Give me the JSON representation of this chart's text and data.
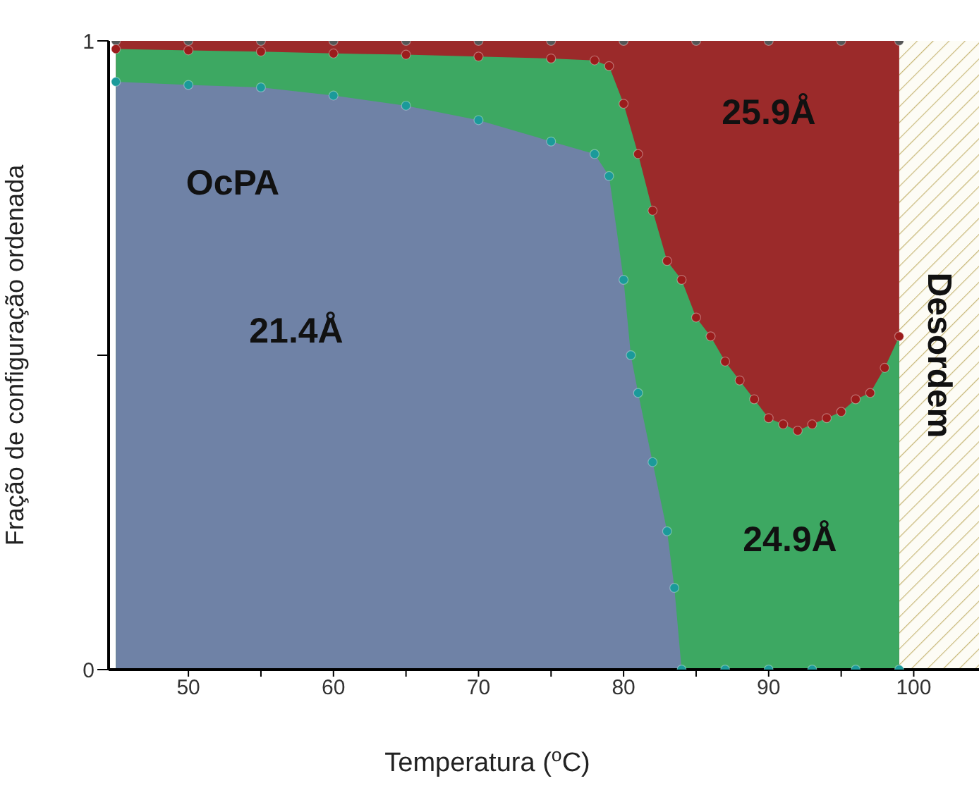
{
  "chart_data": {
    "type": "area",
    "xlabel": "Temperatura ($^{o}$C)",
    "ylabel": "Fração de configuração ordenada",
    "xlim": [
      44.5,
      104.5
    ],
    "xticks": [
      50,
      {
        "value": 55,
        "label": null
      },
      60,
      {
        "value": 65,
        "label": null
      },
      70,
      {
        "value": 75,
        "label": null
      },
      80,
      {
        "value": 85,
        "label": null
      },
      90,
      {
        "value": 95,
        "label": null
      },
      100
    ],
    "ylim": [
      0,
      1
    ],
    "yticks": [
      0,
      {
        "value": 0.5,
        "label": null
      },
      1
    ],
    "grid": false,
    "legend": false,
    "series": [
      {
        "color": "#9b2a2a",
        "x": [
          45,
          50,
          55,
          60,
          65,
          70,
          75,
          80,
          85,
          90,
          95,
          99
        ],
        "values": [
          1,
          1,
          1,
          1,
          1,
          1,
          1,
          1,
          1,
          1,
          1,
          1
        ]
      },
      {
        "color": "#3da862",
        "x": [
          45,
          50,
          55,
          60,
          65,
          70,
          75,
          78,
          79,
          80,
          81,
          82,
          83,
          84,
          85,
          86,
          87,
          88,
          89,
          90,
          91,
          92,
          93,
          94,
          95,
          96,
          97,
          98,
          99
        ],
        "values": [
          0.987,
          0.985,
          0.983,
          0.98,
          0.978,
          0.975,
          0.972,
          0.969,
          0.96,
          0.9,
          0.82,
          0.73,
          0.65,
          0.62,
          0.56,
          0.53,
          0.49,
          0.46,
          0.43,
          0.4,
          0.39,
          0.38,
          0.39,
          0.4,
          0.41,
          0.43,
          0.44,
          0.48,
          0.53
        ]
      },
      {
        "color": "#6f82a6",
        "x": [
          45,
          50,
          55,
          60,
          65,
          70,
          75,
          78,
          79,
          80,
          80.5,
          81,
          82,
          83,
          83.5,
          84,
          87,
          90,
          93,
          96,
          99
        ],
        "values": [
          0.935,
          0.93,
          0.926,
          0.913,
          0.897,
          0.874,
          0.84,
          0.82,
          0.785,
          0.62,
          0.5,
          0.44,
          0.33,
          0.22,
          0.13,
          0,
          0,
          0,
          0,
          0,
          0
        ]
      },
      {
        "type": "scatter",
        "marker": "circle",
        "color": "#555555",
        "x": [
          45,
          50,
          55,
          60,
          65,
          70,
          75,
          80,
          85,
          90,
          95,
          99
        ],
        "values": [
          1,
          1,
          1,
          1,
          1,
          1,
          1,
          1,
          1,
          1,
          1,
          1
        ]
      },
      {
        "type": "scatter",
        "marker": "circle",
        "color": "#9b1c1c",
        "x": [
          45,
          50,
          55,
          60,
          65,
          70,
          75,
          78,
          79,
          80,
          81,
          82,
          83,
          84,
          85,
          86,
          87,
          88,
          89,
          90,
          91,
          92,
          93,
          94,
          95,
          96,
          97,
          98,
          99
        ],
        "values": [
          0.987,
          0.985,
          0.983,
          0.98,
          0.978,
          0.975,
          0.972,
          0.969,
          0.96,
          0.9,
          0.82,
          0.73,
          0.65,
          0.62,
          0.56,
          0.53,
          0.49,
          0.46,
          0.43,
          0.4,
          0.39,
          0.38,
          0.39,
          0.4,
          0.41,
          0.43,
          0.44,
          0.48,
          0.53
        ]
      },
      {
        "type": "scatter",
        "marker": "circle",
        "color": "#1b9a9a",
        "x": [
          45,
          50,
          55,
          60,
          65,
          70,
          75,
          78,
          79,
          80,
          80.5,
          81,
          82,
          83,
          83.5,
          84,
          87,
          90,
          93,
          96,
          99
        ],
        "values": [
          0.935,
          0.93,
          0.926,
          0.913,
          0.897,
          0.874,
          0.84,
          0.82,
          0.785,
          0.62,
          0.5,
          0.44,
          0.33,
          0.22,
          0.13,
          0,
          0,
          0,
          0,
          0,
          0
        ]
      }
    ],
    "bands": [
      {
        "axis": "x",
        "from": 99,
        "to": 104.5,
        "label": "Desordem",
        "color": "#c8b878"
      }
    ],
    "annotations": [
      "OcPA",
      "21.4Å",
      "25.9Å",
      "24.9Å"
    ]
  }
}
